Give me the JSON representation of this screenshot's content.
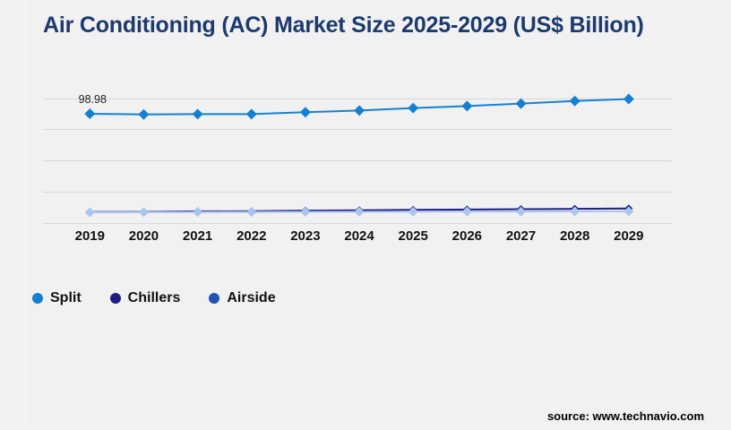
{
  "title": "Air Conditioning (AC) Market Size 2025-2029 (US$ Billion)",
  "source": "source: www.technavio.com",
  "colors": {
    "title": "#1c3a6e",
    "background": "#f2f2f5",
    "panel": "#f1f1f2",
    "gridline": "#d8d8da",
    "axis_text": "#111111",
    "annotation_text": "#222222"
  },
  "legend": {
    "items": [
      {
        "label": "Split",
        "color": "#1680d0"
      },
      {
        "label": "Chillers",
        "color": "#1f1d80"
      },
      {
        "label": "Airside",
        "color": "#2351b5"
      }
    ]
  },
  "annotation": {
    "label": "98.98"
  },
  "chart_data": {
    "type": "line",
    "title": "Air Conditioning (AC) Market Size 2025-2029 (US$ Billion)",
    "xlabel": "",
    "ylabel": "",
    "categories": [
      "2019",
      "2020",
      "2021",
      "2022",
      "2023",
      "2024",
      "2025",
      "2026",
      "2027",
      "2028",
      "2029"
    ],
    "series": [
      {
        "name": "Split",
        "line_color": "#1680d0",
        "marker": "diamond",
        "marker_size": 6,
        "values": [
          98.98,
          98.4,
          98.7,
          98.7,
          100.4,
          101.9,
          104.1,
          105.9,
          108.2,
          110.5,
          112.3
        ]
      },
      {
        "name": "Chillers",
        "line_color": "#1f1d80",
        "marker": "diamond",
        "marker_size": 4.5,
        "values": [
          10.4,
          10.5,
          11.0,
          11.1,
          11.6,
          11.9,
          12.3,
          12.6,
          12.9,
          13.2,
          13.5
        ]
      },
      {
        "name": "Airside",
        "line_color": "#a9c5f0",
        "marker": "diamond",
        "marker_size": 5.5,
        "values": [
          10.1,
          10.2,
          10.3,
          10.4,
          10.5,
          10.6,
          10.7,
          10.8,
          10.8,
          10.9,
          11.0
        ]
      }
    ],
    "ylim": [
      0,
      112.3
    ],
    "grid": "horizontal",
    "y_axis_labels_visible": false,
    "legend_position": "bottom-left",
    "annotations": [
      {
        "series": "Split",
        "category": "2019",
        "text": "98.98"
      }
    ]
  }
}
